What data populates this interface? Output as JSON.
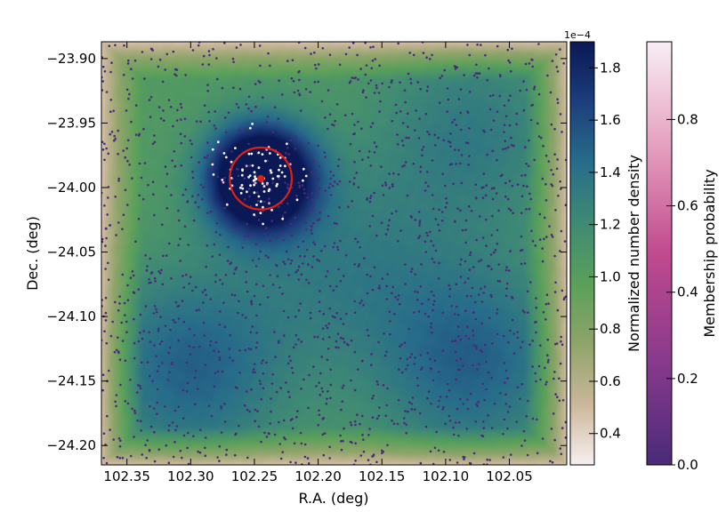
{
  "chart_data": {
    "type": "scatter",
    "xlabel": "R.A. (deg)",
    "ylabel": "Dec. (deg)",
    "xlim": [
      102.37,
      102.005
    ],
    "ylim": [
      -24.215,
      -23.887
    ],
    "x_inverted": true,
    "xticks": [
      102.35,
      102.3,
      102.25,
      102.2,
      102.15,
      102.1,
      102.05
    ],
    "xtick_labels": [
      "102.35",
      "102.30",
      "102.25",
      "102.20",
      "102.15",
      "102.10",
      "102.05"
    ],
    "yticks": [
      -23.9,
      -23.95,
      -24.0,
      -24.05,
      -24.1,
      -24.15,
      -24.2
    ],
    "ytick_labels": [
      "−23.90",
      "−23.95",
      "−24.00",
      "−24.05",
      "−24.10",
      "−24.15",
      "−24.20"
    ],
    "background": "Normalized number density (kernel density map)",
    "density_colorbar": {
      "label": "Normalized number density",
      "offset_label": "1e−4",
      "range": [
        0.28,
        1.9
      ],
      "ticks": [
        0.4,
        0.6,
        0.8,
        1.0,
        1.2,
        1.4,
        1.6,
        1.8
      ],
      "tick_labels": [
        "0.4",
        "0.6",
        "0.8",
        "1.0",
        "1.2",
        "1.4",
        "1.6",
        "1.8"
      ],
      "colors": [
        "#f7efef",
        "#cbb79a",
        "#8fa46a",
        "#5aa05a",
        "#3f8a74",
        "#276d8a",
        "#1d3e7c",
        "#0b1856"
      ]
    },
    "membership_colorbar": {
      "label": "Membership probability",
      "range": [
        0.0,
        0.98
      ],
      "ticks": [
        0.0,
        0.2,
        0.4,
        0.6,
        0.8
      ],
      "tick_labels": [
        "0.0",
        "0.2",
        "0.4",
        "0.6",
        "0.8"
      ],
      "colors": [
        "#4a2a7a",
        "#8a3a8c",
        "#c04a8e",
        "#e59fbe",
        "#f8eef4"
      ]
    },
    "density_peaks": [
      {
        "ra": 102.245,
        "dec": -23.993,
        "level": 1.0
      },
      {
        "ra": 102.3,
        "dec": -24.14,
        "level": 0.28
      },
      {
        "ra": 102.08,
        "dec": -24.135,
        "level": 0.28
      },
      {
        "ra": 102.08,
        "dec": -23.96,
        "level": 0.18
      },
      {
        "ra": 102.18,
        "dec": -24.06,
        "level": 0.15
      }
    ],
    "cluster": {
      "center": {
        "ra": 102.245,
        "dec": -23.993
      },
      "radius_deg": 0.024,
      "circle_color": "#e02010",
      "center_marker_color": "#e02010"
    },
    "field_star_count": 1700,
    "member_star_count": 90,
    "field_star_color": "#4a2a7a",
    "member_star_color": "#f8f4f8"
  }
}
